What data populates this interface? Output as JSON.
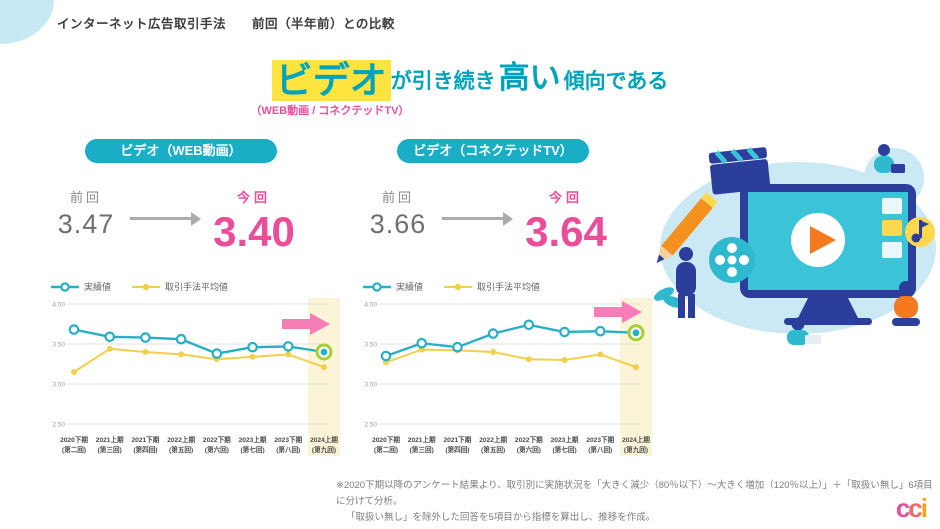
{
  "header": {
    "title": "インターネット広告取引手法　　前回（半年前）との比較"
  },
  "headline": {
    "keyword": "ビデオ",
    "mid": "が引き続き",
    "emphasis": "高い",
    "tail": "傾向である",
    "subtitle": "（WEB動画 / コネクテッドTV）"
  },
  "colors": {
    "teal_text": "#00A3BC",
    "badge_teal": "#19AEC5",
    "pink": "#EC4D9B",
    "highlight_yellow": "#FFE33F",
    "series_teal": "#29AFC5",
    "series_yellow": "#F2CF4C",
    "band_yellow": "#FCF4D6",
    "ring_green": "#A6CE39",
    "arrow_pink": "#F57EB6"
  },
  "charts": [
    {
      "badge": "ビデオ（WEB動画）",
      "previous": {
        "label": "前回",
        "value": "3.47"
      },
      "current": {
        "label": "今回",
        "value": "3.40"
      },
      "legend": [
        "実績値",
        "取引手法平均値"
      ]
    },
    {
      "badge": "ビデオ（コネクテッドTV）",
      "previous": {
        "label": "前回",
        "value": "3.66"
      },
      "current": {
        "label": "今回",
        "value": "3.64"
      },
      "legend": [
        "実績値",
        "取引手法平均値"
      ]
    }
  ],
  "chart_data": [
    {
      "type": "line",
      "title": "ビデオ（WEB動画）",
      "categories": [
        "2020下期",
        "2021上期",
        "2021下期",
        "2022上期",
        "2022下期",
        "2023上期",
        "2023下期",
        "2024上期"
      ],
      "category_sublabels": [
        "(第二回)",
        "(第三回)",
        "(第四回)",
        "(第五回)",
        "(第六回)",
        "(第七回)",
        "(第八回)",
        "(第九回)"
      ],
      "series": [
        {
          "name": "実績値",
          "values": [
            3.68,
            3.59,
            3.58,
            3.56,
            3.38,
            3.46,
            3.47,
            3.4
          ],
          "color": "#29AFC5",
          "marker": "ring",
          "highlight_last": true
        },
        {
          "name": "取引手法平均値",
          "values": [
            3.15,
            3.44,
            3.4,
            3.37,
            3.31,
            3.34,
            3.37,
            3.21
          ],
          "color": "#F2CF4C",
          "marker": "dot"
        }
      ],
      "ylim": [
        2.5,
        4.0
      ],
      "yticks": [
        2.5,
        3.0,
        3.5,
        4.0
      ],
      "grid": true,
      "legend_position": "top",
      "annotations": [
        "最終期を黄色帯とピンク矢印で強調"
      ]
    },
    {
      "type": "line",
      "title": "ビデオ（コネクテッドTV）",
      "categories": [
        "2020下期",
        "2021上期",
        "2021下期",
        "2022上期",
        "2022下期",
        "2023上期",
        "2023下期",
        "2024上期"
      ],
      "category_sublabels": [
        "(第二回)",
        "(第三回)",
        "(第四回)",
        "(第五回)",
        "(第六回)",
        "(第七回)",
        "(第八回)",
        "(第九回)"
      ],
      "series": [
        {
          "name": "実績値",
          "values": [
            3.35,
            3.51,
            3.46,
            3.63,
            3.74,
            3.65,
            3.66,
            3.64
          ],
          "color": "#29AFC5",
          "marker": "ring",
          "highlight_last": true
        },
        {
          "name": "取引手法平均値",
          "values": [
            3.27,
            3.43,
            3.42,
            3.4,
            3.31,
            3.3,
            3.37,
            3.21
          ],
          "color": "#F2CF4C",
          "marker": "dot"
        }
      ],
      "ylim": [
        2.5,
        4.0
      ],
      "yticks": [
        2.5,
        3.0,
        3.5,
        4.0
      ],
      "grid": true,
      "legend_position": "top",
      "annotations": [
        "最終期を黄色帯とピンク矢印で強調"
      ]
    }
  ],
  "footnote": {
    "line1": "※2020下期以降のアンケート結果より、取引別に実施状況を「大きく減少（80％以下）～大きく増加（120％以上）」＋「取扱い無し」6項目に分けて分析。",
    "line2": "「取扱い無し」を除外した回答を5項目から指標を算出し、推移を作成。"
  },
  "logo": {
    "letters": [
      "c",
      "c",
      "i"
    ]
  }
}
